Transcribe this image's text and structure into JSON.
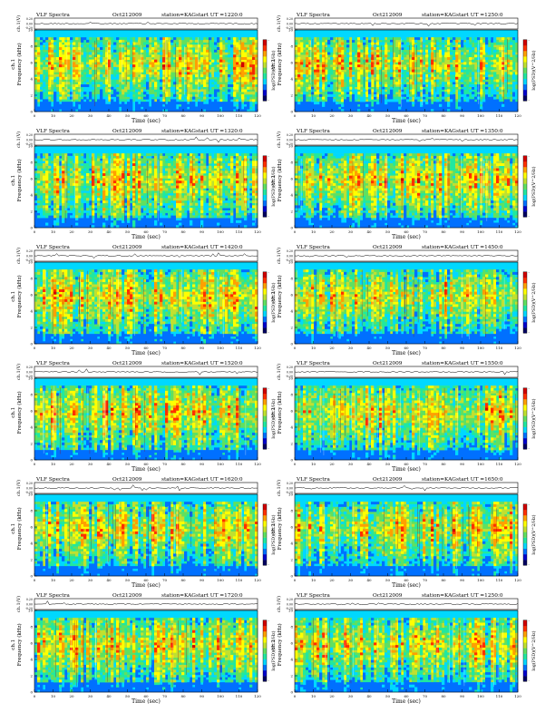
{
  "header_labels": {
    "product": "VLF Spectra",
    "date": "Oct212009",
    "station": "station=KAG",
    "start_prefix": "start  UT ="
  },
  "colors": {
    "spectrogram_scale": [
      "#000060",
      "#0000cc",
      "#0070ff",
      "#00d8ff",
      "#20e8a0",
      "#60e060",
      "#c0e030",
      "#ffff00",
      "#ffa000",
      "#ff3000",
      "#d00000"
    ],
    "background_band": "#00d8ff",
    "axis": "#000000"
  },
  "chart_data": [
    {
      "type": "heatmap",
      "start_ut": "1220:0",
      "waveform_ylabel": "ch.1(V)",
      "waveform_yticks": [
        "0.20",
        "0.00",
        "-0.20"
      ],
      "ylabel": "ch.1\nFrequency (kHz)",
      "xlabel": "Time  (sec)",
      "xticks": [
        0,
        10,
        20,
        30,
        40,
        50,
        60,
        70,
        80,
        90,
        100,
        110,
        120
      ],
      "yticks": [
        0,
        2,
        4,
        6,
        8,
        10
      ],
      "xlim": [
        0,
        120
      ],
      "ylim": [
        0,
        10
      ],
      "colorbar_label": "log(PSD)(V^2/Hz)",
      "colorbar_ticks": [
        "-",
        "-"
      ]
    },
    {
      "type": "heatmap",
      "start_ut": "1250:0",
      "waveform_ylabel": "ch.1(V)",
      "waveform_yticks": [
        "0.20",
        "0.00",
        "-0.20"
      ],
      "ylabel": "ch.1\nFrequency (kHz)",
      "xlabel": "Time  (sec)",
      "xticks": [
        0,
        10,
        20,
        30,
        40,
        50,
        60,
        70,
        80,
        90,
        100,
        110,
        120
      ],
      "yticks": [
        0,
        2,
        4,
        6,
        8,
        10
      ],
      "xlim": [
        0,
        120
      ],
      "ylim": [
        0,
        10
      ],
      "colorbar_label": "log(PSD)(V^2/Hz)",
      "colorbar_ticks": [
        "-",
        "-"
      ]
    },
    {
      "type": "heatmap",
      "start_ut": "1320:0",
      "waveform_ylabel": "ch.1(V)",
      "waveform_yticks": [
        "0.20",
        "0.00",
        "-0.20"
      ],
      "ylabel": "ch.1\nFrequency (kHz)",
      "xlabel": "Time  (sec)",
      "xticks": [
        0,
        10,
        20,
        30,
        40,
        50,
        60,
        70,
        80,
        90,
        100,
        110,
        120
      ],
      "yticks": [
        0,
        2,
        4,
        6,
        8,
        10
      ],
      "xlim": [
        0,
        120
      ],
      "ylim": [
        0,
        10
      ],
      "colorbar_label": "log(PSD)(V^2/Hz)",
      "colorbar_ticks": [
        "-",
        "-"
      ]
    },
    {
      "type": "heatmap",
      "start_ut": "1350:0",
      "waveform_ylabel": "ch.1(V)",
      "waveform_yticks": [
        "0.20",
        "0.00",
        "-0.20"
      ],
      "ylabel": "ch.1\nFrequency (kHz)",
      "xlabel": "Time  (sec)",
      "xticks": [
        0,
        10,
        20,
        30,
        40,
        50,
        60,
        70,
        80,
        90,
        100,
        110,
        120
      ],
      "yticks": [
        0,
        2,
        4,
        6,
        8,
        10
      ],
      "xlim": [
        0,
        120
      ],
      "ylim": [
        0,
        10
      ],
      "colorbar_label": "log(PSD)(V^2/Hz)",
      "colorbar_ticks": [
        "-",
        "-"
      ]
    },
    {
      "type": "heatmap",
      "start_ut": "1420:0",
      "waveform_ylabel": "ch.1(V)",
      "waveform_yticks": [
        "0.20",
        "0.00",
        "-0.20"
      ],
      "ylabel": "ch.1\nFrequency (kHz)",
      "xlabel": "Time  (sec)",
      "xticks": [
        0,
        10,
        20,
        30,
        40,
        50,
        60,
        70,
        80,
        90,
        100,
        110,
        120
      ],
      "yticks": [
        0,
        2,
        4,
        6,
        8,
        10
      ],
      "xlim": [
        0,
        120
      ],
      "ylim": [
        0,
        10
      ],
      "colorbar_label": "log(PSD)(V^2/Hz)",
      "colorbar_ticks": [
        "-",
        "-"
      ]
    },
    {
      "type": "heatmap",
      "start_ut": "1450:0",
      "waveform_ylabel": "ch.1(V)",
      "waveform_yticks": [
        "0.20",
        "0.00",
        "-0.20"
      ],
      "ylabel": "ch.1\nFrequency (kHz)",
      "xlabel": "Time  (sec)",
      "xticks": [
        0,
        10,
        20,
        30,
        40,
        50,
        60,
        70,
        80,
        90,
        100,
        110,
        120
      ],
      "yticks": [
        0,
        2,
        4,
        6,
        8,
        10
      ],
      "xlim": [
        0,
        120
      ],
      "ylim": [
        0,
        10
      ],
      "colorbar_label": "log(PSD)(V^2/Hz)",
      "colorbar_ticks": [
        "-",
        "-"
      ]
    },
    {
      "type": "heatmap",
      "start_ut": "1520:0",
      "waveform_ylabel": "ch.1(V)",
      "waveform_yticks": [
        "0.20",
        "0.00",
        "-0.20"
      ],
      "ylabel": "ch.1\nFrequency (kHz)",
      "xlabel": "Time  (sec)",
      "xticks": [
        0,
        10,
        20,
        30,
        40,
        50,
        60,
        70,
        80,
        90,
        100,
        110,
        120
      ],
      "yticks": [
        0,
        2,
        4,
        6,
        8,
        10
      ],
      "xlim": [
        0,
        120
      ],
      "ylim": [
        0,
        10
      ],
      "colorbar_label": "log(PSD)(V^2/Hz)",
      "colorbar_ticks": [
        "-",
        "-"
      ]
    },
    {
      "type": "heatmap",
      "start_ut": "1550:0",
      "waveform_ylabel": "ch.1(V)",
      "waveform_yticks": [
        "0.20",
        "0.00",
        "-0.20"
      ],
      "ylabel": "ch.1\nFrequency (kHz)",
      "xlabel": "Time  (sec)",
      "xticks": [
        0,
        10,
        20,
        30,
        40,
        50,
        60,
        70,
        80,
        90,
        100,
        110,
        120
      ],
      "yticks": [
        0,
        2,
        4,
        6,
        8,
        10
      ],
      "xlim": [
        0,
        120
      ],
      "ylim": [
        0,
        10
      ],
      "colorbar_label": "log(PSD)(V^2/Hz)",
      "colorbar_ticks": [
        "-",
        "-"
      ]
    },
    {
      "type": "heatmap",
      "start_ut": "1620:0",
      "waveform_ylabel": "ch.1(V)",
      "waveform_yticks": [
        "0.20",
        "0.00",
        "-0.20"
      ],
      "ylabel": "ch.1\nFrequency (kHz)",
      "xlabel": "Time  (sec)",
      "xticks": [
        0,
        10,
        20,
        30,
        40,
        50,
        60,
        70,
        80,
        90,
        100,
        110,
        120
      ],
      "yticks": [
        0,
        2,
        4,
        6,
        8,
        10
      ],
      "xlim": [
        0,
        120
      ],
      "ylim": [
        0,
        10
      ],
      "colorbar_label": "log(PSD)(V^2/Hz)",
      "colorbar_ticks": [
        "-",
        "-"
      ]
    },
    {
      "type": "heatmap",
      "start_ut": "1650:0",
      "waveform_ylabel": "ch.1(V)",
      "waveform_yticks": [
        "0.20",
        "0.00",
        "-0.20"
      ],
      "ylabel": "ch.1\nFrequency (kHz)",
      "xlabel": "Time  (sec)",
      "xticks": [
        0,
        10,
        20,
        30,
        40,
        50,
        60,
        70,
        80,
        90,
        100,
        110,
        120
      ],
      "yticks": [
        0,
        2,
        4,
        6,
        8,
        10
      ],
      "xlim": [
        0,
        120
      ],
      "ylim": [
        0,
        10
      ],
      "colorbar_label": "log(PSD)(V^2/Hz)",
      "colorbar_ticks": [
        "-",
        "-"
      ]
    },
    {
      "type": "heatmap",
      "start_ut": "1720:0",
      "waveform_ylabel": "ch.1(V)",
      "waveform_yticks": [
        "0.20",
        "0.00",
        "-0.20"
      ],
      "ylabel": "ch.1\nFrequency (kHz)",
      "xlabel": "Time  (sec)",
      "xticks": [
        0,
        10,
        20,
        30,
        40,
        50,
        60,
        70,
        80,
        90,
        100,
        110,
        120
      ],
      "yticks": [
        0,
        2,
        4,
        6,
        8,
        10
      ],
      "xlim": [
        0,
        120
      ],
      "ylim": [
        0,
        10
      ],
      "colorbar_label": "log(PSD)(V^2/Hz)",
      "colorbar_ticks": [
        "-",
        "-"
      ]
    },
    {
      "type": "heatmap",
      "start_ut": "1250:0",
      "waveform_ylabel": "ch.1(V)",
      "waveform_yticks": [
        "0.20",
        "0.00",
        "-0.20"
      ],
      "ylabel": "ch.1\nFrequency (kHz)",
      "xlabel": "Time  (sec)",
      "xticks": [
        0,
        10,
        20,
        30,
        40,
        50,
        60,
        70,
        80,
        90,
        100,
        110,
        120
      ],
      "yticks": [
        0,
        2,
        4,
        6,
        8,
        10
      ],
      "xlim": [
        0,
        120
      ],
      "ylim": [
        0,
        10
      ],
      "colorbar_label": "log(PSD)(V^2/Hz)",
      "colorbar_ticks": [
        "-",
        "-"
      ]
    }
  ]
}
